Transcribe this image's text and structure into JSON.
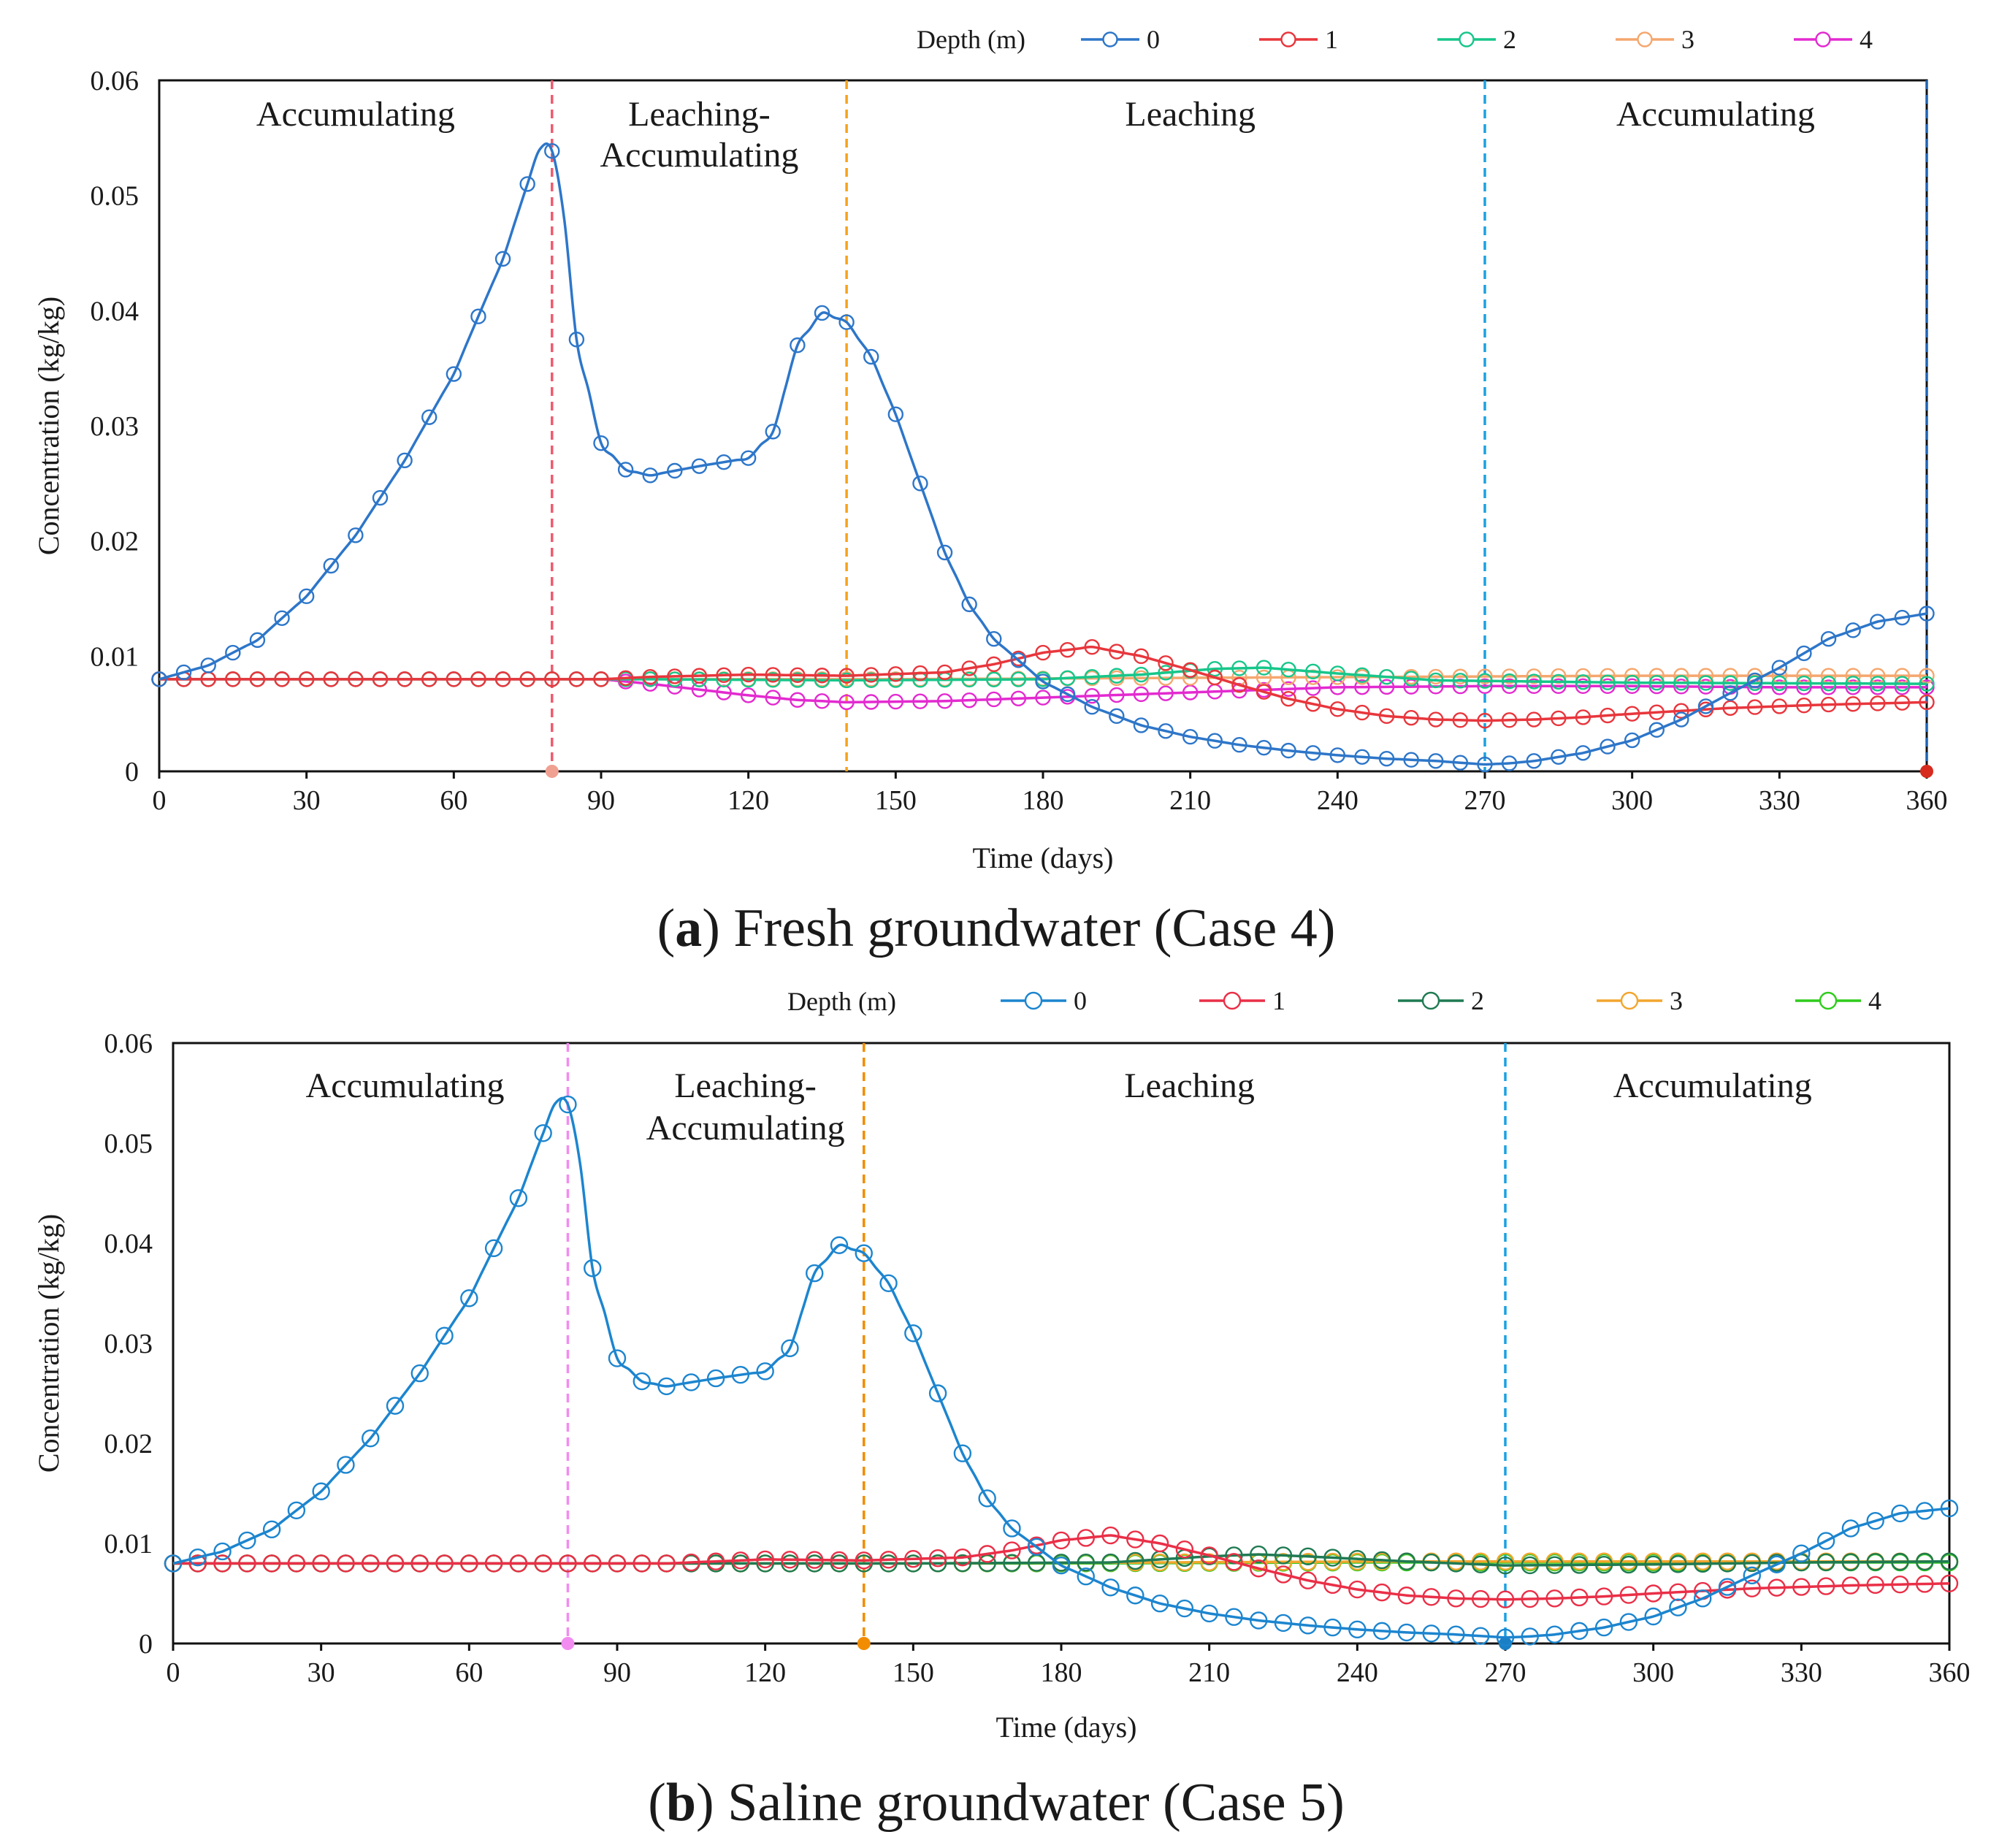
{
  "figure": {
    "panels": [
      {
        "id": "a",
        "caption_letter": "a",
        "caption_rest": ") Fresh groundwater (Case 4)",
        "legend_title": "Depth (m)",
        "phases": [
          {
            "lines": [
              "Accumulating"
            ],
            "x": 40
          },
          {
            "lines": [
              "Leaching-",
              "Accumulating"
            ],
            "x": 110
          },
          {
            "lines": [
              "Leaching"
            ],
            "x": 210
          },
          {
            "lines": [
              "Accumulating"
            ],
            "x": 317
          }
        ],
        "dividers": [
          {
            "x": 80,
            "color": "#f05a6e",
            "marker": "#f0a090"
          },
          {
            "x": 140,
            "color": "#f7a21b",
            "marker": ""
          },
          {
            "x": 270,
            "color": "#1ba1e2",
            "marker": ""
          },
          {
            "x": 360,
            "color": "#1f63b5",
            "marker": "#d62b1e"
          }
        ]
      },
      {
        "id": "b",
        "caption_letter": "b",
        "caption_rest": ") Saline groundwater (Case 5)",
        "legend_title": "Depth (m)",
        "phases": [
          {
            "lines": [
              "Accumulating"
            ],
            "x": 47
          },
          {
            "lines": [
              "Leaching-",
              "Accumulating"
            ],
            "x": 116
          },
          {
            "lines": [
              "Leaching"
            ],
            "x": 206
          },
          {
            "lines": [
              "Accumulating"
            ],
            "x": 312
          }
        ],
        "dividers": [
          {
            "x": 80,
            "color": "#f28cf0",
            "marker": "#f28cf0"
          },
          {
            "x": 140,
            "color": "#f28c00",
            "marker": "#f28c00"
          },
          {
            "x": 270,
            "color": "#1ba1e2",
            "marker": "#1a7fc4"
          }
        ]
      }
    ]
  },
  "chart_data": [
    {
      "type": "line",
      "title": "(a) Fresh groundwater (Case 4)",
      "xlabel": "Time (days)",
      "ylabel": "Concentration (kg/kg)",
      "xlim": [
        0,
        360
      ],
      "ylim": [
        0,
        0.06
      ],
      "xticks": [
        "0",
        "30",
        "60",
        "90",
        "120",
        "150",
        "180",
        "210",
        "240",
        "270",
        "300",
        "330",
        "360"
      ],
      "yticks": [
        "0",
        "0.01",
        "0.02",
        "0.03",
        "0.04",
        "0.05",
        "0.06"
      ],
      "legend_title": "Depth (m)",
      "series": [
        {
          "name": "0",
          "color": "#2d76c9",
          "points": [
            [
              0,
              0.008
            ],
            [
              10,
              0.0092
            ],
            [
              20,
              0.0114
            ],
            [
              30,
              0.0152
            ],
            [
              40,
              0.0205
            ],
            [
              50,
              0.027
            ],
            [
              60,
              0.0345
            ],
            [
              70,
              0.0445
            ],
            [
              75,
              0.051
            ],
            [
              79,
              0.0558
            ],
            [
              82,
              0.05
            ],
            [
              85,
              0.0375
            ],
            [
              90,
              0.0285
            ],
            [
              95,
              0.0262
            ],
            [
              100,
              0.0257
            ],
            [
              110,
              0.0265
            ],
            [
              120,
              0.0272
            ],
            [
              125,
              0.0295
            ],
            [
              130,
              0.037
            ],
            [
              135,
              0.0398
            ],
            [
              140,
              0.039
            ],
            [
              145,
              0.036
            ],
            [
              150,
              0.031
            ],
            [
              155,
              0.025
            ],
            [
              160,
              0.019
            ],
            [
              165,
              0.0145
            ],
            [
              170,
              0.0115
            ],
            [
              180,
              0.0078
            ],
            [
              190,
              0.0056
            ],
            [
              200,
              0.004
            ],
            [
              210,
              0.003
            ],
            [
              220,
              0.0023
            ],
            [
              230,
              0.0018
            ],
            [
              240,
              0.0014
            ],
            [
              250,
              0.0011
            ],
            [
              260,
              0.0009
            ],
            [
              270,
              0.0006
            ],
            [
              275,
              0.0007
            ],
            [
              280,
              0.0009
            ],
            [
              290,
              0.0016
            ],
            [
              300,
              0.0027
            ],
            [
              310,
              0.0045
            ],
            [
              320,
              0.0068
            ],
            [
              330,
              0.009
            ],
            [
              340,
              0.0115
            ],
            [
              350,
              0.013
            ],
            [
              360,
              0.0137
            ]
          ]
        },
        {
          "name": "1",
          "color": "#e8363c",
          "points": [
            [
              0,
              0.008
            ],
            [
              90,
              0.008
            ],
            [
              100,
              0.0082
            ],
            [
              120,
              0.0084
            ],
            [
              140,
              0.0083
            ],
            [
              160,
              0.0086
            ],
            [
              170,
              0.0093
            ],
            [
              180,
              0.0103
            ],
            [
              190,
              0.0108
            ],
            [
              200,
              0.01
            ],
            [
              210,
              0.0088
            ],
            [
              220,
              0.0075
            ],
            [
              230,
              0.0063
            ],
            [
              240,
              0.0054
            ],
            [
              250,
              0.0048
            ],
            [
              260,
              0.0045
            ],
            [
              270,
              0.0044
            ],
            [
              280,
              0.0045
            ],
            [
              290,
              0.0047
            ],
            [
              300,
              0.005
            ],
            [
              320,
              0.0055
            ],
            [
              340,
              0.0058
            ],
            [
              360,
              0.006
            ]
          ]
        },
        {
          "name": "2",
          "color": "#17c68a",
          "points": [
            [
              0,
              0.008
            ],
            [
              100,
              0.008
            ],
            [
              140,
              0.0079
            ],
            [
              180,
              0.008
            ],
            [
              200,
              0.0084
            ],
            [
              215,
              0.0089
            ],
            [
              225,
              0.009
            ],
            [
              240,
              0.0085
            ],
            [
              260,
              0.0079
            ],
            [
              300,
              0.0077
            ],
            [
              360,
              0.0076
            ]
          ]
        },
        {
          "name": "3",
          "color": "#f5a76e",
          "points": [
            [
              0,
              0.008
            ],
            [
              150,
              0.008
            ],
            [
              200,
              0.0081
            ],
            [
              250,
              0.0082
            ],
            [
              300,
              0.0083
            ],
            [
              360,
              0.0083
            ]
          ]
        },
        {
          "name": "4",
          "color": "#e32ad0",
          "points": [
            [
              0,
              0.008
            ],
            [
              90,
              0.008
            ],
            [
              100,
              0.0076
            ],
            [
              110,
              0.0071
            ],
            [
              120,
              0.0066
            ],
            [
              130,
              0.0062
            ],
            [
              140,
              0.006
            ],
            [
              160,
              0.0061
            ],
            [
              180,
              0.0064
            ],
            [
              200,
              0.0067
            ],
            [
              220,
              0.007
            ],
            [
              240,
              0.0073
            ],
            [
              270,
              0.0074
            ],
            [
              300,
              0.0074
            ],
            [
              330,
              0.0073
            ],
            [
              360,
              0.0073
            ]
          ]
        }
      ]
    },
    {
      "type": "line",
      "title": "(b) Saline groundwater (Case 5)",
      "xlabel": "Time (days)",
      "ylabel": "Concentration (kg/kg)",
      "xlim": [
        0,
        360
      ],
      "ylim": [
        0,
        0.06
      ],
      "xticks": [
        "0",
        "30",
        "60",
        "90",
        "120",
        "150",
        "180",
        "210",
        "240",
        "270",
        "300",
        "330",
        "360"
      ],
      "yticks": [
        "0",
        "0.01",
        "0.02",
        "0.03",
        "0.04",
        "0.05",
        "0.06"
      ],
      "legend_title": "Depth (m)",
      "series": [
        {
          "name": "0",
          "color": "#1c85cf",
          "points": [
            [
              0,
              0.008
            ],
            [
              10,
              0.0092
            ],
            [
              20,
              0.0114
            ],
            [
              30,
              0.0152
            ],
            [
              40,
              0.0205
            ],
            [
              50,
              0.027
            ],
            [
              60,
              0.0345
            ],
            [
              70,
              0.0445
            ],
            [
              75,
              0.051
            ],
            [
              79,
              0.0558
            ],
            [
              82,
              0.05
            ],
            [
              85,
              0.0375
            ],
            [
              90,
              0.0285
            ],
            [
              95,
              0.0262
            ],
            [
              100,
              0.0257
            ],
            [
              110,
              0.0265
            ],
            [
              120,
              0.0272
            ],
            [
              125,
              0.0295
            ],
            [
              130,
              0.037
            ],
            [
              135,
              0.0398
            ],
            [
              140,
              0.039
            ],
            [
              145,
              0.036
            ],
            [
              150,
              0.031
            ],
            [
              155,
              0.025
            ],
            [
              160,
              0.019
            ],
            [
              165,
              0.0145
            ],
            [
              170,
              0.0115
            ],
            [
              180,
              0.0078
            ],
            [
              190,
              0.0056
            ],
            [
              200,
              0.004
            ],
            [
              210,
              0.003
            ],
            [
              220,
              0.0023
            ],
            [
              230,
              0.0018
            ],
            [
              240,
              0.0014
            ],
            [
              250,
              0.0011
            ],
            [
              260,
              0.0009
            ],
            [
              270,
              0.0006
            ],
            [
              275,
              0.0007
            ],
            [
              280,
              0.0009
            ],
            [
              290,
              0.0016
            ],
            [
              300,
              0.0027
            ],
            [
              310,
              0.0045
            ],
            [
              320,
              0.0068
            ],
            [
              330,
              0.009
            ],
            [
              340,
              0.0115
            ],
            [
              350,
              0.013
            ],
            [
              360,
              0.0135
            ]
          ]
        },
        {
          "name": "1",
          "color": "#ea2f47",
          "points": [
            [
              0,
              0.008
            ],
            [
              100,
              0.008
            ],
            [
              120,
              0.0084
            ],
            [
              140,
              0.0083
            ],
            [
              160,
              0.0086
            ],
            [
              170,
              0.0093
            ],
            [
              180,
              0.0103
            ],
            [
              190,
              0.0108
            ],
            [
              200,
              0.01
            ],
            [
              210,
              0.0088
            ],
            [
              220,
              0.0075
            ],
            [
              230,
              0.0063
            ],
            [
              240,
              0.0054
            ],
            [
              250,
              0.0048
            ],
            [
              260,
              0.0045
            ],
            [
              270,
              0.0044
            ],
            [
              280,
              0.0045
            ],
            [
              290,
              0.0047
            ],
            [
              300,
              0.005
            ],
            [
              320,
              0.0055
            ],
            [
              340,
              0.0058
            ],
            [
              360,
              0.006
            ]
          ]
        },
        {
          "name": "2",
          "color": "#1f7a52",
          "points": [
            [
              0,
              0.008
            ],
            [
              150,
              0.008
            ],
            [
              190,
              0.0081
            ],
            [
              210,
              0.0087
            ],
            [
              220,
              0.0089
            ],
            [
              230,
              0.0087
            ],
            [
              250,
              0.0082
            ],
            [
              270,
              0.0078
            ],
            [
              300,
              0.0079
            ],
            [
              330,
              0.0081
            ],
            [
              360,
              0.0082
            ]
          ]
        },
        {
          "name": "3",
          "color": "#f2a62e",
          "points": [
            [
              0,
              0.008
            ],
            [
              150,
              0.008
            ],
            [
              200,
              0.0081
            ],
            [
              250,
              0.0082
            ],
            [
              300,
              0.0082
            ],
            [
              360,
              0.0082
            ]
          ]
        },
        {
          "name": "4",
          "color": "#2fcc1c",
          "points": [
            [
              0,
              0.008
            ],
            [
              180,
              0.008
            ],
            [
              240,
              0.0081
            ],
            [
              300,
              0.0081
            ],
            [
              360,
              0.0081
            ]
          ]
        }
      ]
    }
  ]
}
